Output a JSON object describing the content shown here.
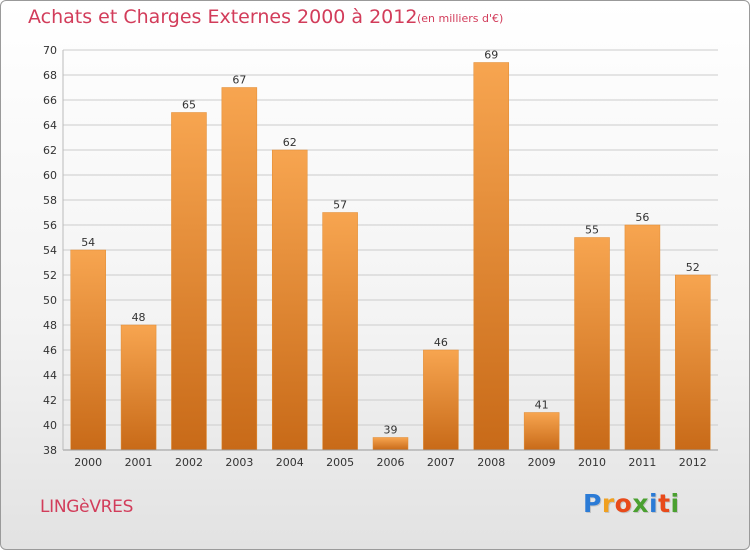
{
  "header": {
    "title": "Achats et Charges Externes 2000 à 2012",
    "subtitle": "(en milliers d'€)"
  },
  "footer": {
    "commune": "LINGèVRES",
    "logo": [
      "P",
      "r",
      "o",
      "x",
      "i",
      "t",
      "i"
    ],
    "logo_colors": [
      "#2b7bd6",
      "#f0a020",
      "#e84a1a",
      "#4aa030",
      "#2b7bd6",
      "#e84a1a",
      "#4aa030"
    ]
  },
  "chart_data": {
    "type": "bar",
    "categories": [
      "2000",
      "2001",
      "2002",
      "2003",
      "2004",
      "2005",
      "2006",
      "2007",
      "2008",
      "2009",
      "2010",
      "2011",
      "2012"
    ],
    "values": [
      54,
      48,
      65,
      67,
      62,
      57,
      39,
      46,
      69,
      41,
      55,
      56,
      52
    ],
    "title": "Achats et Charges Externes 2000 à 2012",
    "ylim": [
      38,
      70
    ],
    "yticks": [
      38,
      40,
      42,
      44,
      46,
      48,
      50,
      52,
      54,
      56,
      58,
      60,
      62,
      64,
      66,
      68,
      70
    ],
    "grid": true,
    "bar_color_top": "#f7a550",
    "bar_color_bottom": "#c86a18",
    "grid_color": "#cccccc",
    "label_color": "#333333"
  }
}
